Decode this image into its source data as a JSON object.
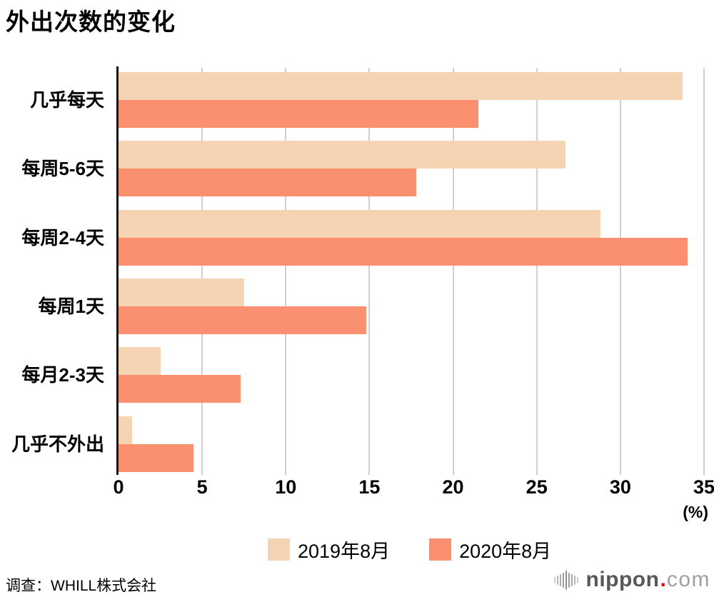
{
  "title": "外出次数的变化",
  "chart_data": {
    "type": "bar",
    "orientation": "horizontal",
    "title": "外出次数的变化",
    "categories": [
      "几乎每天",
      "每周5-6天",
      "每周2-4天",
      "每周1天",
      "每月2-3天",
      "几乎不外出"
    ],
    "series": [
      {
        "name": "2019年8月",
        "color": "#F4D4B2",
        "values": [
          33.7,
          26.7,
          28.8,
          7.5,
          2.5,
          0.8
        ]
      },
      {
        "name": "2020年8月",
        "color": "#FB9071",
        "values": [
          21.5,
          17.8,
          34.0,
          14.8,
          7.3,
          4.5
        ]
      }
    ],
    "xlabel": "(%)",
    "xlim": [
      0,
      35
    ],
    "xticks": [
      0,
      5,
      10,
      15,
      20,
      25,
      30,
      35
    ],
    "grid": true,
    "gridline_color": "#cfcfcf",
    "axis_color": "#111111",
    "legend_position": "bottom"
  },
  "footer": {
    "source": "调查：WHILL株式会社"
  },
  "logo": {
    "icon": "soundwave-bars-icon",
    "name": "nippon",
    "dot": ".",
    "tld": "com"
  }
}
